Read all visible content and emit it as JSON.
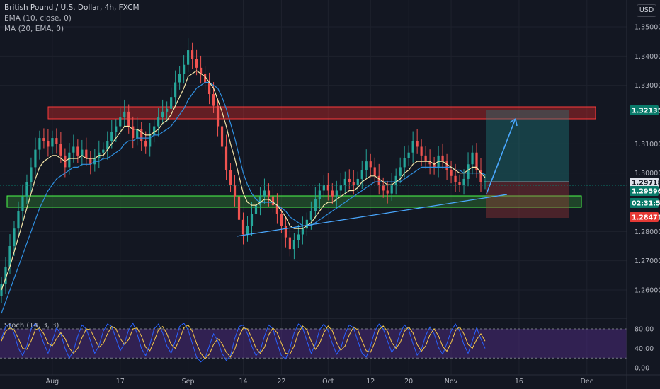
{
  "legend": {
    "title": "British Pound / U.S. Dollar, 4h, FXCM",
    "ema": "EMA (10, close, 0)",
    "ma": "MA (20, EMA, 0)"
  },
  "currency_button": "USD",
  "stoch_label": "Stoch (14, 3, 3)",
  "price_axis": {
    "ticks": [
      {
        "value": 1.35,
        "label": "1.35000"
      },
      {
        "value": 1.34,
        "label": "1.34000"
      },
      {
        "value": 1.33,
        "label": "1.33000"
      },
      {
        "value": 1.31,
        "label": "1.31000"
      },
      {
        "value": 1.3,
        "label": "1.30000"
      },
      {
        "value": 1.28,
        "label": "1.28000"
      },
      {
        "value": 1.27,
        "label": "1.27000"
      },
      {
        "value": 1.26,
        "label": "1.26000"
      }
    ],
    "badges": [
      {
        "value": 1.32135,
        "label": "1.32135",
        "bg": "#0a7a6a",
        "fg": "#ffffff"
      },
      {
        "value": 1.29718,
        "label": "1.29718",
        "bg": "#e0e3eb",
        "fg": "#131722"
      },
      {
        "value": 1.29596,
        "label": "1.29596",
        "bg": "#0a7a6a",
        "fg": "#ffffff"
      },
      {
        "value": 1.293,
        "label": "02:31:53",
        "bg": "#0a7a6a",
        "fg": "#ffffff"
      },
      {
        "value": 1.28471,
        "label": "1.28471",
        "bg": "#e53935",
        "fg": "#ffffff"
      }
    ]
  },
  "stoch_axis": {
    "ticks": [
      {
        "value": 80,
        "label": "80.00"
      },
      {
        "value": 40,
        "label": "40.00"
      },
      {
        "value": 0,
        "label": "0.00"
      }
    ]
  },
  "time_axis": {
    "ticks": [
      {
        "index": 12,
        "label": "Aug"
      },
      {
        "index": 28,
        "label": "17"
      },
      {
        "index": 44,
        "label": "Sep"
      },
      {
        "index": 57,
        "label": "14"
      },
      {
        "index": 66,
        "label": "22"
      },
      {
        "index": 77,
        "label": "Oct"
      },
      {
        "index": 87,
        "label": "12"
      },
      {
        "index": 96,
        "label": "20"
      },
      {
        "index": 106,
        "label": "Nov"
      },
      {
        "index": 122,
        "label": "16"
      },
      {
        "index": 138,
        "label": "Dec"
      }
    ]
  },
  "colors": {
    "up": "#26a69a",
    "down": "#ef5350",
    "ema": "#f5e6a8",
    "ma": "#2f8fe0",
    "trend": "#4aa8ff",
    "stoch_k": "#2962ff",
    "stoch_d": "#f7c948",
    "stoch_band": "#4a2a7a"
  },
  "chart_data": {
    "type": "candlestick",
    "series_names": [
      "EMA (10, close, 0)",
      "MA (20, EMA, 0)",
      "Stoch (14, 3, 3)"
    ],
    "ylim": [
      1.252,
      1.356
    ],
    "close": [
      1.262,
      1.268,
      1.275,
      1.281,
      1.287,
      1.292,
      1.297,
      1.302,
      1.308,
      1.312,
      1.311,
      1.309,
      1.312,
      1.31,
      1.306,
      1.302,
      1.307,
      1.309,
      1.306,
      1.308,
      1.305,
      1.303,
      1.305,
      1.307,
      1.308,
      1.311,
      1.314,
      1.316,
      1.319,
      1.321,
      1.316,
      1.312,
      1.315,
      1.311,
      1.309,
      1.313,
      1.316,
      1.319,
      1.321,
      1.322,
      1.326,
      1.331,
      1.334,
      1.337,
      1.342,
      1.339,
      1.336,
      1.334,
      1.331,
      1.327,
      1.323,
      1.316,
      1.309,
      1.301,
      1.296,
      1.292,
      1.284,
      1.279,
      1.282,
      1.286,
      1.289,
      1.292,
      1.294,
      1.292,
      1.289,
      1.286,
      1.282,
      1.278,
      1.274,
      1.277,
      1.279,
      1.281,
      1.284,
      1.287,
      1.291,
      1.294,
      1.296,
      1.294,
      1.292,
      1.294,
      1.296,
      1.298,
      1.297,
      1.296,
      1.298,
      1.301,
      1.304,
      1.302,
      1.299,
      1.296,
      1.294,
      1.293,
      1.296,
      1.299,
      1.302,
      1.305,
      1.307,
      1.311,
      1.309,
      1.306,
      1.304,
      1.303,
      1.302,
      1.306,
      1.304,
      1.301,
      1.299,
      1.297,
      1.296,
      1.298,
      1.303,
      1.307,
      1.301,
      1.297,
      1.2972
    ],
    "ema_10": [
      1.26,
      1.264,
      1.268,
      1.273,
      1.278,
      1.283,
      1.288,
      1.293,
      1.298,
      1.302,
      1.304,
      1.305,
      1.306,
      1.306,
      1.305,
      1.304,
      1.305,
      1.305,
      1.305,
      1.306,
      1.305,
      1.305,
      1.305,
      1.306,
      1.306,
      1.308,
      1.31,
      1.312,
      1.314,
      1.316,
      1.316,
      1.315,
      1.315,
      1.314,
      1.313,
      1.313,
      1.314,
      1.315,
      1.317,
      1.318,
      1.32,
      1.323,
      1.326,
      1.329,
      1.333,
      1.334,
      1.335,
      1.334,
      1.333,
      1.331,
      1.329,
      1.325,
      1.321,
      1.316,
      1.31,
      1.305,
      1.299,
      1.293,
      1.29,
      1.289,
      1.289,
      1.29,
      1.291,
      1.291,
      1.29,
      1.289,
      1.287,
      1.285,
      1.282,
      1.281,
      1.281,
      1.281,
      1.282,
      1.283,
      1.285,
      1.287,
      1.289,
      1.29,
      1.29,
      1.291,
      1.292,
      1.293,
      1.294,
      1.294,
      1.295,
      1.297,
      1.298,
      1.299,
      1.299,
      1.298,
      1.297,
      1.296,
      1.296,
      1.297,
      1.298,
      1.3,
      1.301,
      1.303,
      1.304,
      1.304,
      1.304,
      1.304,
      1.303,
      1.304,
      1.304,
      1.303,
      1.302,
      1.301,
      1.3,
      1.3,
      1.301,
      1.302,
      1.302,
      1.3,
      1.2985
    ],
    "ma_20": [
      1.252,
      1.256,
      1.26,
      1.264,
      1.268,
      1.272,
      1.276,
      1.28,
      1.284,
      1.288,
      1.291,
      1.294,
      1.296,
      1.298,
      1.299,
      1.3,
      1.301,
      1.302,
      1.302,
      1.303,
      1.303,
      1.303,
      1.304,
      1.304,
      1.305,
      1.305,
      1.306,
      1.307,
      1.308,
      1.31,
      1.311,
      1.311,
      1.312,
      1.312,
      1.312,
      1.312,
      1.313,
      1.313,
      1.314,
      1.315,
      1.316,
      1.318,
      1.32,
      1.322,
      1.325,
      1.327,
      1.329,
      1.33,
      1.331,
      1.331,
      1.33,
      1.329,
      1.326,
      1.322,
      1.317,
      1.312,
      1.306,
      1.3,
      1.296,
      1.293,
      1.291,
      1.29,
      1.29,
      1.29,
      1.29,
      1.289,
      1.288,
      1.287,
      1.285,
      1.284,
      1.283,
      1.282,
      1.282,
      1.282,
      1.283,
      1.284,
      1.285,
      1.286,
      1.287,
      1.288,
      1.289,
      1.29,
      1.291,
      1.292,
      1.293,
      1.294,
      1.295,
      1.296,
      1.297,
      1.297,
      1.297,
      1.297,
      1.297,
      1.297,
      1.297,
      1.298,
      1.299,
      1.3,
      1.301,
      1.302,
      1.302,
      1.302,
      1.302,
      1.302,
      1.302,
      1.302,
      1.302,
      1.301,
      1.301,
      1.3,
      1.3,
      1.3,
      1.3,
      1.3,
      1.2995
    ],
    "stoch_k": [
      60,
      85,
      90,
      70,
      40,
      25,
      45,
      80,
      92,
      75,
      50,
      30,
      55,
      82,
      70,
      40,
      20,
      35,
      65,
      88,
      80,
      55,
      30,
      45,
      75,
      90,
      85,
      60,
      35,
      50,
      78,
      92,
      70,
      40,
      25,
      48,
      80,
      90,
      72,
      45,
      30,
      55,
      85,
      92,
      78,
      50,
      22,
      12,
      20,
      45,
      70,
      55,
      30,
      15,
      25,
      60,
      85,
      88,
      70,
      45,
      25,
      35,
      65,
      88,
      80,
      50,
      25,
      18,
      40,
      72,
      90,
      82,
      55,
      30,
      48,
      78,
      90,
      76,
      50,
      28,
      40,
      70,
      88,
      82,
      55,
      30,
      22,
      45,
      75,
      90,
      80,
      55,
      32,
      45,
      72,
      88,
      78,
      50,
      26,
      38,
      66,
      84,
      70,
      42,
      28,
      50,
      76,
      90,
      75,
      48,
      30,
      55,
      82,
      60,
      40
    ],
    "stoch_d": [
      55,
      75,
      82,
      78,
      60,
      40,
      38,
      55,
      78,
      82,
      70,
      50,
      45,
      60,
      72,
      60,
      40,
      30,
      40,
      62,
      80,
      78,
      60,
      42,
      50,
      70,
      85,
      80,
      60,
      48,
      58,
      80,
      82,
      65,
      42,
      35,
      55,
      78,
      85,
      70,
      48,
      40,
      58,
      82,
      88,
      75,
      50,
      30,
      18,
      28,
      48,
      60,
      50,
      32,
      22,
      38,
      65,
      82,
      80,
      62,
      40,
      30,
      42,
      68,
      82,
      72,
      50,
      30,
      28,
      45,
      72,
      86,
      78,
      55,
      38,
      50,
      72,
      86,
      76,
      52,
      36,
      45,
      68,
      84,
      78,
      55,
      35,
      32,
      52,
      78,
      86,
      75,
      52,
      40,
      52,
      75,
      84,
      72,
      48,
      34,
      45,
      68,
      80,
      66,
      44,
      34,
      52,
      76,
      84,
      70,
      48,
      40,
      58,
      70,
      55
    ]
  }
}
